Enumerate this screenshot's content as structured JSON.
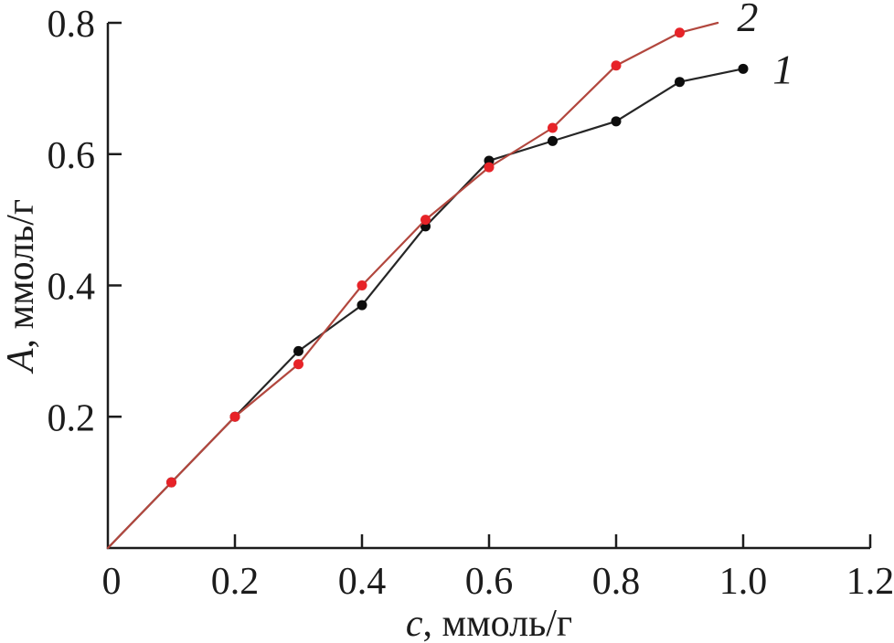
{
  "figure": {
    "background": "#ffffff",
    "axis_color": "#1c1c1c"
  },
  "chart_data": {
    "type": "line",
    "title": "",
    "xlabel": "c, ммоль/г",
    "ylabel": "A, ммоль/г",
    "xlabel_parts": {
      "symbol": "c",
      "rest": ", ммоль/г"
    },
    "ylabel_parts": {
      "symbol": "A",
      "rest": ", ммоль/г"
    },
    "xlim": [
      0,
      1.2
    ],
    "ylim": [
      0,
      0.8
    ],
    "grid": false,
    "legend_position": "end-of-line",
    "axis_color": "#1c1c1c",
    "x_ticks": [
      {
        "value": 0,
        "label": "0",
        "mark": false
      },
      {
        "value": 0.2,
        "label": "0.2",
        "mark": true
      },
      {
        "value": 0.4,
        "label": "0.4",
        "mark": true
      },
      {
        "value": 0.6,
        "label": "0.6",
        "mark": true
      },
      {
        "value": 0.8,
        "label": "0.8",
        "mark": true
      },
      {
        "value": 1.0,
        "label": "1.0",
        "mark": true
      },
      {
        "value": 1.2,
        "label": "1.2",
        "mark": true
      }
    ],
    "y_ticks": [
      {
        "value": 0.2,
        "label": "0.2",
        "mark": true
      },
      {
        "value": 0.4,
        "label": "0.4",
        "mark": true
      },
      {
        "value": 0.6,
        "label": "0.6",
        "mark": true
      },
      {
        "value": 0.8,
        "label": "0.8",
        "mark": true
      }
    ],
    "series": [
      {
        "name": "1",
        "label": "1",
        "label_pos": [
          1.063,
          0.73
        ],
        "line_color": "#262626",
        "marker_color": "#0d0d0d",
        "line_start": [
          0,
          0
        ],
        "x": [
          0.1,
          0.2,
          0.3,
          0.4,
          0.5,
          0.6,
          0.7,
          0.8,
          0.9,
          1.0
        ],
        "y": [
          0.1,
          0.2,
          0.3,
          0.37,
          0.49,
          0.59,
          0.62,
          0.65,
          0.71,
          0.73
        ]
      },
      {
        "name": "2",
        "label": "2",
        "label_pos": [
          1.007,
          0.81
        ],
        "line_color": "#b2473e",
        "marker_color": "#e72328",
        "line_start": [
          0,
          0
        ],
        "line_end": [
          0.96,
          0.8
        ],
        "x": [
          0.1,
          0.2,
          0.3,
          0.4,
          0.5,
          0.6,
          0.7,
          0.8,
          0.9
        ],
        "y": [
          0.1,
          0.2,
          0.28,
          0.4,
          0.5,
          0.58,
          0.64,
          0.735,
          0.785
        ]
      }
    ]
  }
}
